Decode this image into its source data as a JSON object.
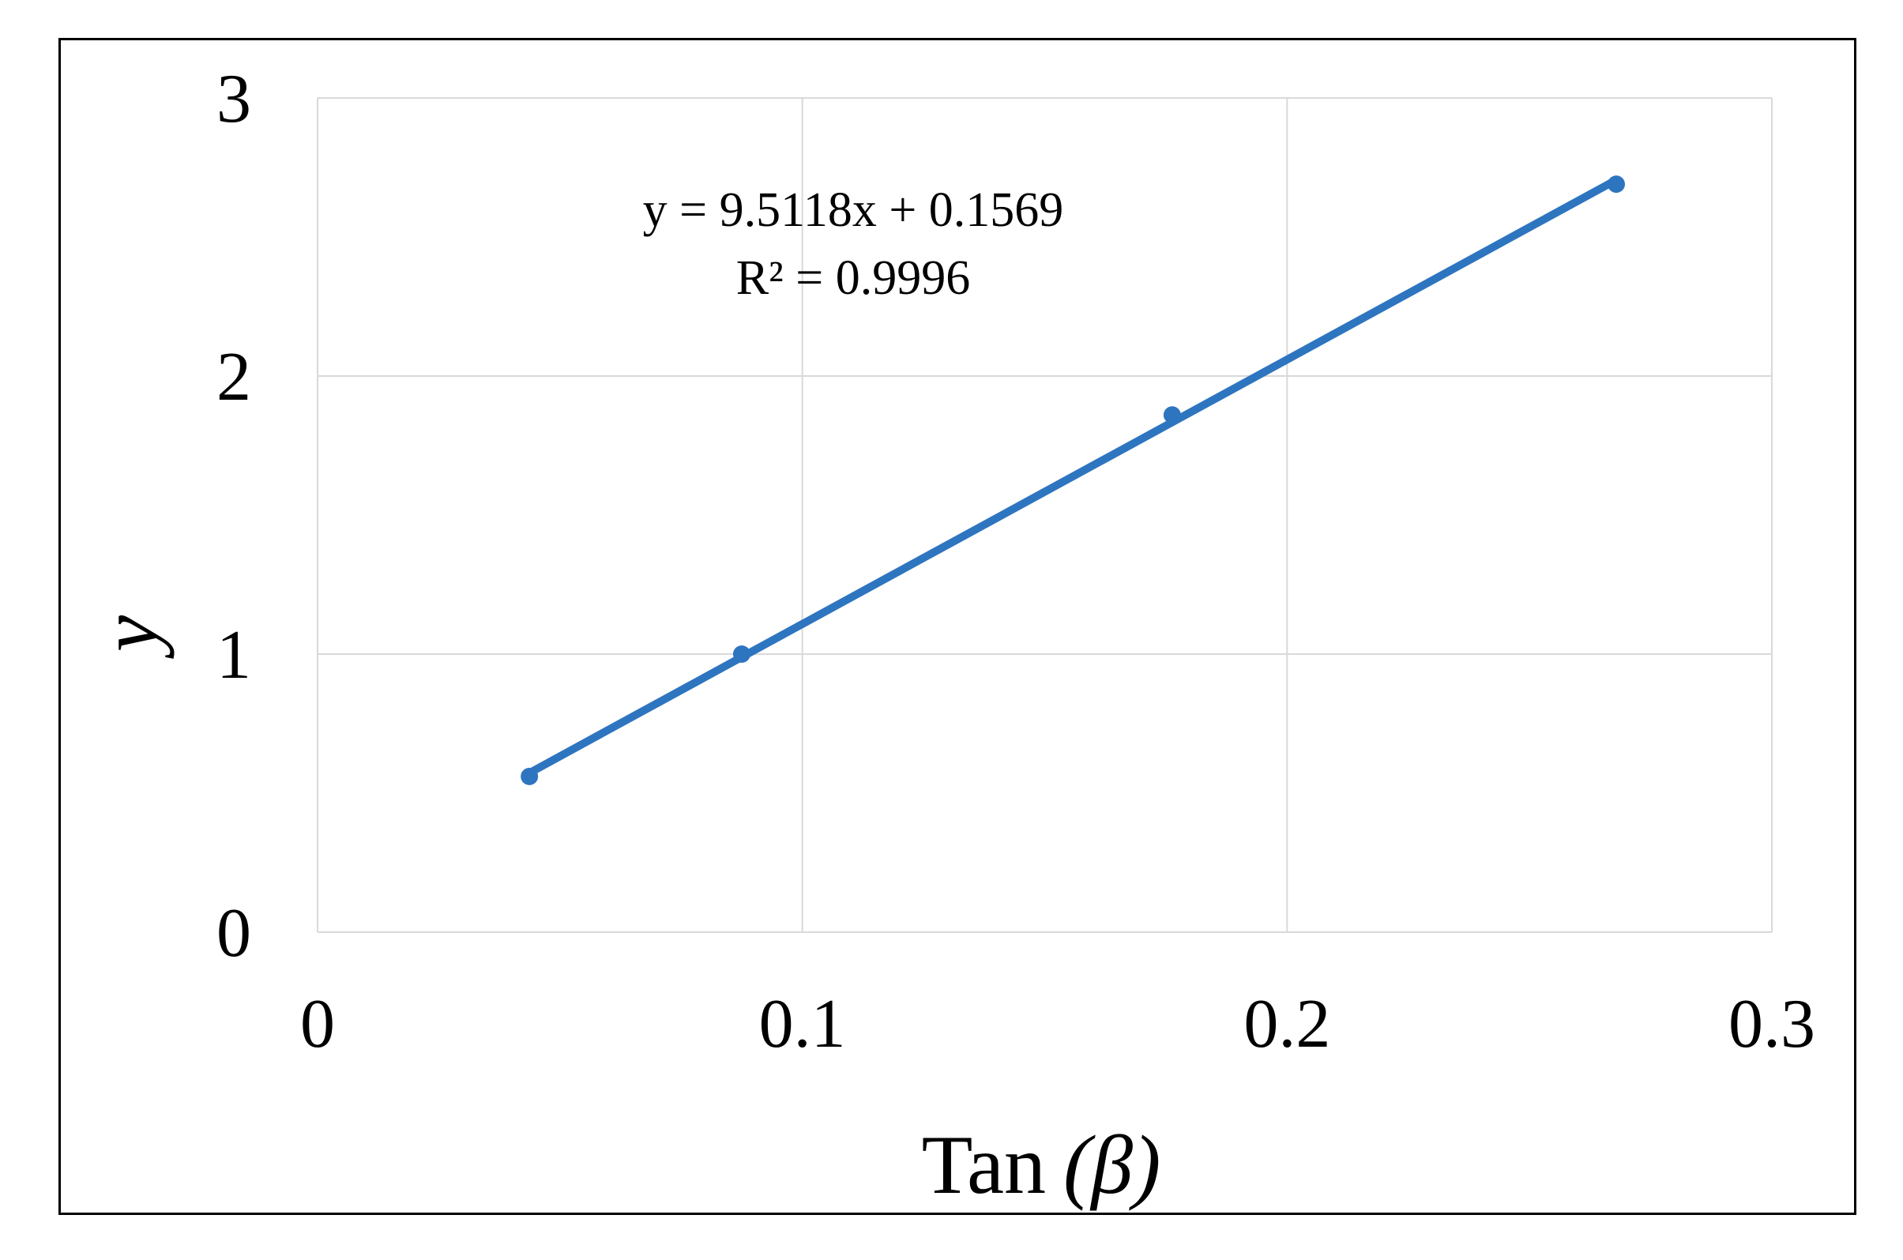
{
  "chart_data": {
    "type": "scatter",
    "xlabel_main": "Tan",
    "xlabel_sym": "(β)",
    "ylabel": "y",
    "xlim": [
      0,
      0.3
    ],
    "ylim": [
      0,
      3
    ],
    "x_ticks": [
      0,
      0.1,
      0.2,
      0.3
    ],
    "x_tick_labels": [
      "0",
      "0.1",
      "0.2",
      "0.3"
    ],
    "y_ticks": [
      0,
      1,
      2,
      3
    ],
    "y_tick_labels": [
      "0",
      "1",
      "2",
      "3"
    ],
    "grid": true,
    "points": [
      {
        "x": 0.0437,
        "y": 0.56
      },
      {
        "x": 0.0875,
        "y": 1.0
      },
      {
        "x": 0.1763,
        "y": 1.86
      },
      {
        "x": 0.2679,
        "y": 2.69
      }
    ],
    "trendline": {
      "slope": 9.5118,
      "intercept": 0.1569,
      "x_range": [
        0.0437,
        0.2679
      ]
    },
    "equation": "y = 9.5118x + 0.1569",
    "r_squared": "R² = 0.9996",
    "series_color": "#2E75C0",
    "grid_color": "#D9D9D9"
  }
}
